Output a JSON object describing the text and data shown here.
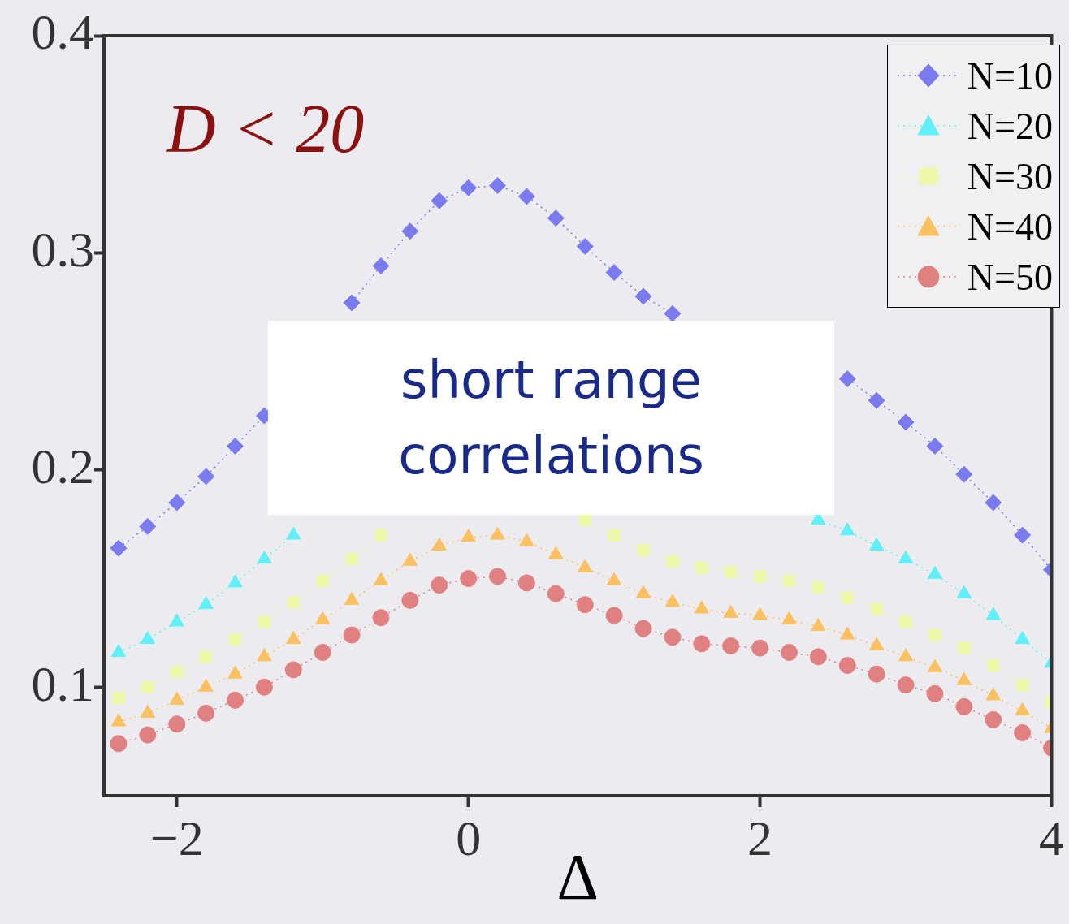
{
  "chart_data": {
    "type": "line",
    "xlabel": "Δ",
    "x": [
      -2.4,
      -2.2,
      -2.0,
      -1.8,
      -1.6,
      -1.4,
      -1.2,
      -1.0,
      -0.8,
      -0.6,
      -0.4,
      -0.2,
      0,
      0.2,
      0.4,
      0.6,
      0.8,
      1.0,
      1.2,
      1.4,
      1.6,
      1.8,
      2.0,
      2.2,
      2.4,
      2.6,
      2.8,
      3.0,
      3.2,
      3.4,
      3.6,
      3.8,
      4.0
    ],
    "series": [
      {
        "name": "N=10",
        "color": "#7b7bf0",
        "marker": "diamond",
        "values": [
          0.164,
          0.174,
          0.185,
          0.197,
          0.211,
          0.225,
          null,
          null,
          0.277,
          0.294,
          0.31,
          0.324,
          0.33,
          0.331,
          0.326,
          0.316,
          0.303,
          0.291,
          0.28,
          0.272,
          null,
          null,
          null,
          null,
          null,
          0.242,
          0.232,
          0.222,
          0.211,
          0.198,
          0.185,
          0.17,
          0.154
        ]
      },
      {
        "name": "N=20",
        "color": "#60f0f8",
        "marker": "triangle",
        "values": [
          0.116,
          0.122,
          0.13,
          0.138,
          0.148,
          0.159,
          0.17,
          null,
          null,
          null,
          null,
          null,
          null,
          null,
          null,
          null,
          null,
          null,
          null,
          null,
          null,
          null,
          null,
          null,
          0.177,
          0.172,
          0.165,
          0.159,
          0.152,
          0.143,
          0.133,
          0.122,
          0.111
        ]
      },
      {
        "name": "N=30",
        "color": "#eef8a8",
        "marker": "square",
        "values": [
          0.095,
          0.1,
          0.107,
          0.114,
          0.122,
          0.13,
          0.139,
          0.149,
          0.159,
          0.17,
          null,
          null,
          null,
          null,
          null,
          null,
          0.177,
          0.17,
          0.163,
          0.158,
          0.155,
          0.153,
          0.151,
          0.149,
          0.146,
          0.141,
          0.136,
          0.13,
          0.124,
          0.118,
          0.11,
          0.101,
          0.093
        ]
      },
      {
        "name": "N=40",
        "color": "#fbc060",
        "marker": "triangle",
        "values": [
          0.084,
          0.088,
          0.094,
          0.1,
          0.106,
          0.114,
          0.122,
          0.131,
          0.14,
          0.149,
          0.158,
          0.165,
          0.169,
          0.17,
          0.167,
          0.161,
          0.155,
          0.149,
          0.143,
          0.139,
          0.136,
          0.134,
          0.133,
          0.131,
          0.128,
          0.124,
          0.119,
          0.114,
          0.109,
          0.103,
          0.096,
          0.089,
          0.081
        ]
      },
      {
        "name": "N=50",
        "color": "#e08080",
        "marker": "circle",
        "values": [
          0.074,
          0.078,
          0.083,
          0.088,
          0.094,
          0.1,
          0.108,
          0.116,
          0.124,
          0.132,
          0.14,
          0.147,
          0.15,
          0.151,
          0.148,
          0.143,
          0.138,
          0.133,
          0.127,
          0.123,
          0.12,
          0.119,
          0.118,
          0.116,
          0.114,
          0.11,
          0.106,
          0.101,
          0.097,
          0.091,
          0.085,
          0.079,
          0.072
        ]
      }
    ],
    "xlim": [
      -2.5,
      4
    ],
    "xticks": [
      -2,
      0,
      2,
      4
    ],
    "ylim": [
      0.05,
      0.4
    ],
    "yticks": [
      0.1,
      0.2,
      0.3,
      0.4
    ],
    "grid": false,
    "legend": "top right",
    "line_style": "dotted",
    "annotations": [
      "D < 20",
      "short range correlations"
    ]
  }
}
